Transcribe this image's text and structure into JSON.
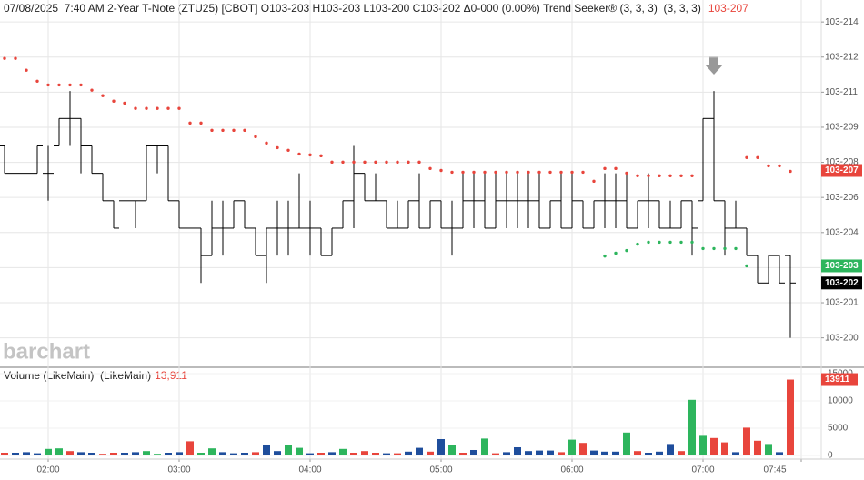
{
  "chart_data": [
    {
      "type": "ohlc",
      "title": "07/08/2025  7:40 AM 2-Year T-Note (ZTU25) [CBOT] O103-203 H103-203 L103-200 C103-202 Δ0-000 (0.00%) Trend Seeker® (3, 3, 3)  (3, 3, 3)",
      "watermark": "barchart",
      "x": [
        "01:40",
        "01:45",
        "01:50",
        "01:55",
        "02:00",
        "02:05",
        "02:10",
        "02:15",
        "02:20",
        "02:25",
        "02:30",
        "02:35",
        "02:40",
        "02:45",
        "02:50",
        "02:55",
        "03:00",
        "03:05",
        "03:10",
        "03:15",
        "03:20",
        "03:25",
        "03:30",
        "03:35",
        "03:40",
        "03:45",
        "03:50",
        "03:55",
        "04:00",
        "04:05",
        "04:10",
        "04:15",
        "04:20",
        "04:25",
        "04:30",
        "04:35",
        "04:40",
        "04:45",
        "04:50",
        "04:55",
        "05:00",
        "05:05",
        "05:10",
        "05:15",
        "05:20",
        "05:25",
        "05:30",
        "05:35",
        "05:40",
        "05:45",
        "05:50",
        "05:55",
        "06:00",
        "06:05",
        "06:10",
        "06:15",
        "06:20",
        "06:25",
        "06:30",
        "06:35",
        "06:40",
        "06:45",
        "06:50",
        "06:55",
        "07:00",
        "07:05",
        "07:10",
        "07:15",
        "07:20",
        "07:25",
        "07:30",
        "07:35",
        "07:40"
      ],
      "open": [
        20.875,
        20.75,
        20.75,
        20.75,
        20.75,
        20.875,
        21,
        21,
        20.875,
        20.75,
        20.625,
        20.625,
        20.625,
        20.625,
        20.875,
        20.875,
        20.625,
        20.5,
        20.5,
        20.375,
        20.5,
        20.5,
        20.625,
        20.5,
        20.375,
        20.5,
        20.5,
        20.5,
        20.5,
        20.5,
        20.375,
        20.5,
        20.625,
        20.75,
        20.625,
        20.625,
        20.5,
        20.5,
        20.625,
        20.5,
        20.625,
        20.5,
        20.5,
        20.625,
        20.625,
        20.5,
        20.625,
        20.625,
        20.625,
        20.625,
        20.5,
        20.625,
        20.5,
        20.625,
        20.5,
        20.625,
        20.625,
        20.625,
        20.5,
        20.625,
        20.625,
        20.5,
        20.5,
        20.625,
        20.625,
        21,
        20.625,
        20.5,
        20.5,
        20.375,
        20.25,
        20.375,
        20.375
      ],
      "high": [
        20.875,
        20.75,
        20.75,
        20.875,
        20.875,
        21,
        21.125,
        21,
        20.875,
        20.75,
        20.625,
        20.625,
        20.625,
        20.875,
        20.875,
        20.875,
        20.625,
        20.5,
        20.5,
        20.625,
        20.625,
        20.625,
        20.625,
        20.5,
        20.5,
        20.625,
        20.625,
        20.75,
        20.625,
        20.5,
        20.5,
        20.625,
        20.875,
        20.75,
        20.75,
        20.625,
        20.625,
        20.625,
        20.75,
        20.625,
        20.625,
        20.625,
        20.75,
        20.75,
        20.75,
        20.75,
        20.75,
        20.75,
        20.75,
        20.75,
        20.625,
        20.75,
        20.75,
        20.625,
        20.625,
        20.75,
        20.75,
        20.75,
        20.625,
        20.75,
        20.625,
        20.625,
        20.625,
        20.625,
        21,
        21.125,
        20.625,
        20.625,
        20.5,
        20.375,
        20.375,
        20.375,
        20.375
      ],
      "low": [
        20.75,
        20.75,
        20.75,
        20.75,
        20.625,
        20.875,
        20.875,
        20.75,
        20.75,
        20.625,
        20.5,
        20.625,
        20.5,
        20.625,
        20.75,
        20.625,
        20.5,
        20.5,
        20.25,
        20.375,
        20.375,
        20.5,
        20.5,
        20.375,
        20.25,
        20.375,
        20.375,
        20.5,
        20.375,
        20.375,
        20.375,
        20.5,
        20.5,
        20.625,
        20.625,
        20.5,
        20.5,
        20.5,
        20.5,
        20.5,
        20.5,
        20.375,
        20.5,
        20.5,
        20.5,
        20.5,
        20.5,
        20.5,
        20.5,
        20.5,
        20.5,
        20.5,
        20.5,
        20.5,
        20.5,
        20.5,
        20.5,
        20.5,
        20.5,
        20.5,
        20.5,
        20.5,
        20.5,
        20.375,
        20.625,
        20.625,
        20.375,
        20.5,
        20.375,
        20.25,
        20.25,
        20.25,
        20
      ],
      "close": [
        20.75,
        20.75,
        20.75,
        20.875,
        20.75,
        21,
        21,
        20.875,
        20.75,
        20.625,
        20.5,
        20.625,
        20.625,
        20.875,
        20.875,
        20.625,
        20.5,
        20.5,
        20.375,
        20.5,
        20.5,
        20.625,
        20.5,
        20.375,
        20.5,
        20.5,
        20.5,
        20.5,
        20.5,
        20.375,
        20.5,
        20.625,
        20.75,
        20.625,
        20.625,
        20.5,
        20.5,
        20.625,
        20.5,
        20.625,
        20.5,
        20.5,
        20.625,
        20.625,
        20.5,
        20.625,
        20.625,
        20.625,
        20.625,
        20.5,
        20.625,
        20.5,
        20.625,
        20.5,
        20.625,
        20.625,
        20.625,
        20.5,
        20.625,
        20.625,
        20.5,
        20.5,
        20.625,
        20.5,
        21,
        20.625,
        20.5,
        20.5,
        20.375,
        20.25,
        20.375,
        20.25,
        20.25
      ],
      "color": "#000000",
      "trend_seeker": {
        "upper": [
          21.274,
          21.274,
          21.22,
          21.17,
          21.153,
          21.153,
          21.153,
          21.153,
          21.129,
          21.104,
          21.079,
          21.07,
          21.046,
          21.046,
          21.046,
          21.046,
          21.046,
          20.979,
          20.979,
          20.946,
          20.946,
          20.946,
          20.946,
          20.917,
          20.888,
          20.867,
          20.855,
          20.838,
          20.834,
          20.83,
          20.801,
          20.801,
          20.801,
          20.801,
          20.801,
          20.801,
          20.801,
          20.801,
          20.801,
          20.772,
          20.763,
          20.755,
          20.755,
          20.755,
          20.755,
          20.755,
          20.755,
          20.755,
          20.755,
          20.755,
          20.755,
          20.755,
          20.755,
          20.755,
          20.714,
          20.772,
          20.772,
          20.751,
          20.739,
          20.739,
          20.739,
          20.739,
          20.739,
          20.739,
          null,
          null,
          null,
          null,
          20.822,
          20.822,
          20.784,
          20.784,
          20.759
        ],
        "lower": [
          null,
          null,
          null,
          null,
          null,
          null,
          null,
          null,
          null,
          null,
          null,
          null,
          null,
          null,
          null,
          null,
          null,
          null,
          null,
          null,
          null,
          null,
          null,
          null,
          null,
          null,
          null,
          null,
          null,
          null,
          null,
          null,
          null,
          null,
          null,
          null,
          null,
          null,
          null,
          null,
          null,
          null,
          null,
          null,
          null,
          null,
          null,
          null,
          null,
          null,
          null,
          null,
          null,
          null,
          null,
          20.373,
          20.386,
          20.398,
          20.427,
          20.436,
          20.436,
          20.436,
          20.436,
          20.436,
          20.407,
          20.407,
          20.407,
          20.407,
          20.328,
          null,
          null,
          null,
          null
        ],
        "upper_color": "#e8453c",
        "lower_color": "#2db55d"
      },
      "ylim": [
        19.87,
        21.54
      ],
      "yticks": [
        {
          "value": 20,
          "label": "103-200"
        },
        {
          "value": 20.16,
          "label": "103-201"
        },
        {
          "value": 20.32,
          "label": "103-203"
        },
        {
          "value": 20.48,
          "label": "103-204"
        },
        {
          "value": 20.64,
          "label": "103-206"
        },
        {
          "value": 20.8,
          "label": "103-208"
        },
        {
          "value": 20.96,
          "label": "103-209"
        },
        {
          "value": 21.12,
          "label": "103-211"
        },
        {
          "value": 21.28,
          "label": "103-212"
        },
        {
          "value": 21.44,
          "label": "103-214"
        }
      ],
      "xticks": [
        "02:00",
        "03:00",
        "04:00",
        "05:00",
        "06:00",
        "07:00",
        "07:45"
      ],
      "grid": true,
      "price_labels": [
        {
          "value": 20.763,
          "label": "103-207",
          "color": "#e8453c"
        },
        {
          "value": 20.328,
          "label": "103-203",
          "color": "#2db55d"
        },
        {
          "value": 20.25,
          "label": "103-202",
          "color": "#000000"
        }
      ]
    },
    {
      "type": "bar",
      "title": "Volume (LikeMain)  (LikeMain)",
      "title_value_label": "13,911",
      "values": [
        500,
        500,
        600,
        400,
        1200,
        1300,
        800,
        600,
        500,
        300,
        500,
        500,
        600,
        800,
        300,
        500,
        600,
        2600,
        500,
        1300,
        600,
        400,
        500,
        600,
        2000,
        800,
        2000,
        1400,
        400,
        500,
        600,
        1200,
        500,
        800,
        500,
        400,
        400,
        700,
        1400,
        700,
        3000,
        1900,
        500,
        1000,
        3100,
        400,
        600,
        1500,
        800,
        900,
        900,
        600,
        2900,
        2300,
        900,
        700,
        700,
        4200,
        800,
        500,
        700,
        2100,
        800,
        10200,
        3600,
        3200,
        2400,
        600,
        5100,
        2700,
        2100,
        600,
        13911
      ],
      "colors": [
        "#e8453c",
        "#1f4e9c",
        "#1f4e9c",
        "#1f4e9c",
        "#2db55d",
        "#2db55d",
        "#e8453c",
        "#1f4e9c",
        "#1f4e9c",
        "#e8453c",
        "#e8453c",
        "#1f4e9c",
        "#1f4e9c",
        "#2db55d",
        "#2db55d",
        "#1f4e9c",
        "#1f4e9c",
        "#e8453c",
        "#2db55d",
        "#2db55d",
        "#1f4e9c",
        "#1f4e9c",
        "#1f4e9c",
        "#e8453c",
        "#1f4e9c",
        "#1f4e9c",
        "#2db55d",
        "#2db55d",
        "#1f4e9c",
        "#e8453c",
        "#1f4e9c",
        "#2db55d",
        "#e8453c",
        "#e8453c",
        "#e8453c",
        "#1f4e9c",
        "#e8453c",
        "#1f4e9c",
        "#1f4e9c",
        "#e8453c",
        "#1f4e9c",
        "#2db55d",
        "#e8453c",
        "#1f4e9c",
        "#2db55d",
        "#e8453c",
        "#1f4e9c",
        "#1f4e9c",
        "#1f4e9c",
        "#1f4e9c",
        "#1f4e9c",
        "#e8453c",
        "#2db55d",
        "#e8453c",
        "#1f4e9c",
        "#1f4e9c",
        "#1f4e9c",
        "#2db55d",
        "#e8453c",
        "#1f4e9c",
        "#1f4e9c",
        "#1f4e9c",
        "#e8453c",
        "#2db55d",
        "#2db55d",
        "#e8453c",
        "#e8453c",
        "#1f4e9c",
        "#e8453c",
        "#e8453c",
        "#2db55d",
        "#1f4e9c",
        "#e8453c"
      ],
      "ylim": [
        -667,
        16000
      ],
      "yticks": [
        0,
        5000,
        10000,
        15000
      ],
      "last_value_color": "#e8453c"
    }
  ]
}
